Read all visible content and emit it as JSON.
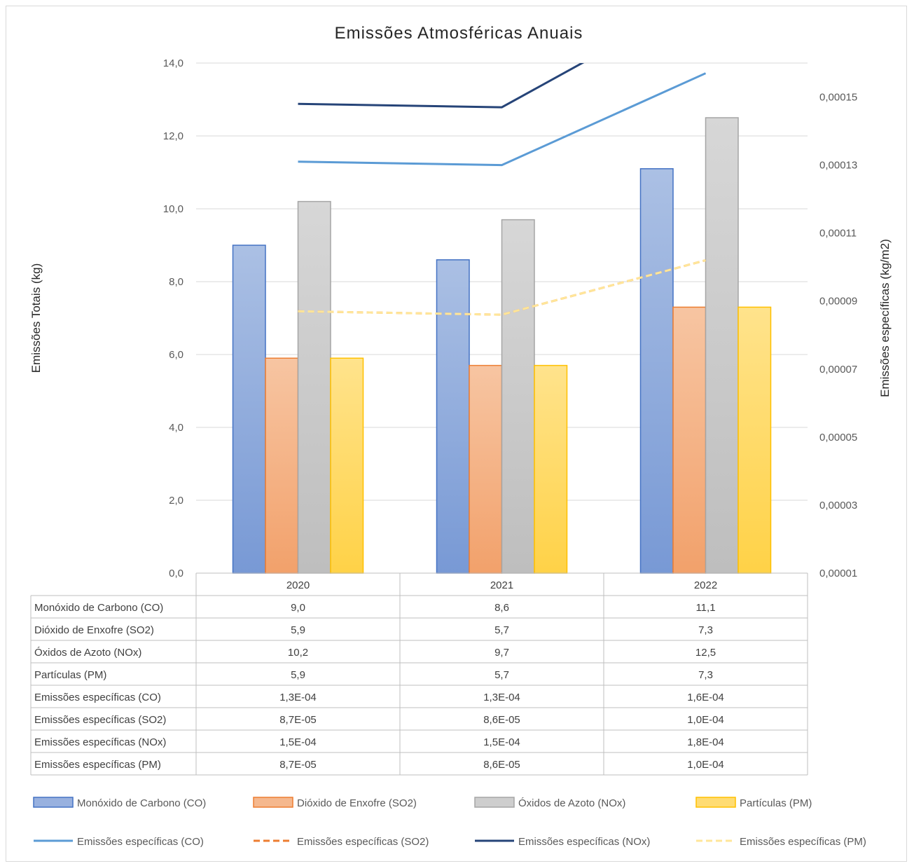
{
  "chart_data": {
    "type": "bar",
    "title": "Emissões  Atmosféricas  Anuais",
    "ylabel": "Emissões Totais (kg)",
    "y2label": "Emissões específicas (kg/m2)",
    "ylim": [
      0,
      14
    ],
    "y_ticks": [
      "0,0",
      "2,0",
      "4,0",
      "6,0",
      "8,0",
      "10,0",
      "12,0",
      "14,0"
    ],
    "y2lim": [
      1e-05,
      0.00016
    ],
    "y2_ticks": [
      "0,00001",
      "0,00003",
      "0,00005",
      "0,00007",
      "0,00009",
      "0,00011",
      "0,00013",
      "0,00015"
    ],
    "grid": true,
    "legend_position": "bottom",
    "categories": [
      "2020",
      "2021",
      "2022"
    ],
    "series": [
      {
        "name": "Monóxido de Carbono (CO)",
        "kind": "bar",
        "axis": "left",
        "color": "#4472c4",
        "values": [
          9.0,
          8.6,
          11.1
        ],
        "labels": [
          "9,0",
          "8,6",
          "11,1"
        ]
      },
      {
        "name": "Dióxido de Enxofre (SO2)",
        "kind": "bar",
        "axis": "left",
        "color": "#ed7d31",
        "values": [
          5.9,
          5.7,
          7.3
        ],
        "labels": [
          "5,9",
          "5,7",
          "7,3"
        ]
      },
      {
        "name": "Óxidos de Azoto (NOx)",
        "kind": "bar",
        "axis": "left",
        "color": "#a5a5a5",
        "values": [
          10.2,
          9.7,
          12.5
        ],
        "labels": [
          "10,2",
          "9,7",
          "12,5"
        ]
      },
      {
        "name": "Partículas (PM)",
        "kind": "bar",
        "axis": "left",
        "color": "#ffc000",
        "values": [
          5.9,
          5.7,
          7.3
        ],
        "labels": [
          "5,9",
          "5,7",
          "7,3"
        ]
      },
      {
        "name": "Emissões específicas (CO)",
        "kind": "line",
        "axis": "right",
        "color": "#5b9bd5",
        "dash": "solid",
        "values": [
          0.000131,
          0.00013,
          0.000157
        ],
        "labels": [
          "1,3E-04",
          "1,3E-04",
          "1,6E-04"
        ]
      },
      {
        "name": "Emissões específicas (SO2)",
        "kind": "line",
        "axis": "right",
        "color": "#ed7d31",
        "dash": "dashed",
        "values": [
          8.7e-05,
          8.6e-05,
          0.000102
        ],
        "labels": [
          "8,7E-05",
          "8,6E-05",
          "1,0E-04"
        ]
      },
      {
        "name": "Emissões específicas (NOx)",
        "kind": "line",
        "axis": "right",
        "color": "#264478",
        "dash": "solid",
        "values": [
          0.000148,
          0.000147,
          0.00018
        ],
        "labels": [
          "1,5E-04",
          "1,5E-04",
          "1,8E-04"
        ]
      },
      {
        "name": "Emissões específicas (PM)",
        "kind": "line",
        "axis": "right",
        "color": "#ffe699",
        "dash": "dashed",
        "values": [
          8.7e-05,
          8.6e-05,
          0.000102
        ],
        "labels": [
          "8,7E-05",
          "8,6E-05",
          "1,0E-04"
        ]
      }
    ]
  }
}
